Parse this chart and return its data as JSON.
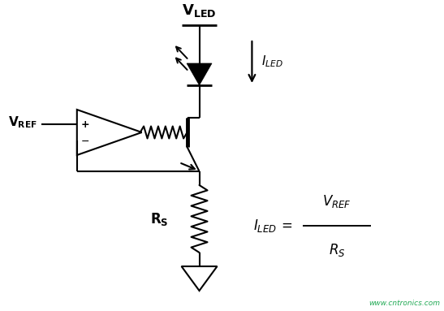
{
  "background_color": "#ffffff",
  "line_color": "#000000",
  "watermark_color": "#22aa55",
  "watermark_text": "www.cntronics.com",
  "figsize": [
    5.47,
    3.83
  ],
  "dpi": 100
}
